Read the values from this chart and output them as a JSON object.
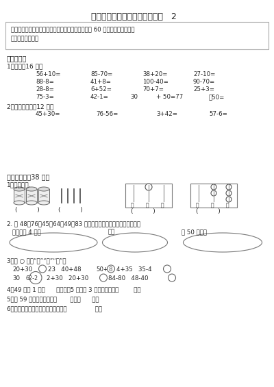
{
  "title": "苏教版一年级数学下册期中试卷   2",
  "intro_line1": "小朋友，一学期已经过去一半了，你学得好吗？请用 60 分钟完成这张试卷。",
  "intro_line2": "相信你一定能行。",
  "section1_title": "一、算一算",
  "sub1_1": "1、口算（16 分）",
  "row1": [
    "56+10=",
    "85-70=",
    "38+20=",
    "27-10="
  ],
  "row2": [
    "88-8=",
    "41+8=",
    "100-40=",
    "90-70="
  ],
  "row3": [
    "28-8=",
    "6+52=",
    "70+7=",
    "25+3="
  ],
  "row4": [
    "75-3=",
    "42-1=",
    "30",
    "+ 50=77",
    "－50="
  ],
  "sub1_2": "2、用竖式计算（12 分）",
  "row5": [
    "45+30=",
    "76-56=",
    "3+42=",
    "57-6="
  ],
  "section2_title": "二、填一填（38 分）",
  "sub2_1": "1、看图写数.",
  "sub2_2": "2. 在 48、76、45、64、49、83 这六个数中，选择合适的填在圈里。",
  "sub2_2a": "十位上是 4 的数",
  "sub2_2b": "单数",
  "sub2_2c": "比 50 大的数",
  "sub2_3": "3、在 ○ 填上“＝”“＜”“＞”。",
  "sub2_4": "4、49 添上 1 是（      ）个十。5 个一和 3 个十合起来是（        ）。",
  "sub2_5": "5、和 59 相邻的两个数是（       ）和（      ）。",
  "sub2_6": "6、最小的两位数比最大的两位数小（               ）。",
  "bg_color": "#ffffff",
  "text_color": "#333333",
  "border_color": "#888888"
}
